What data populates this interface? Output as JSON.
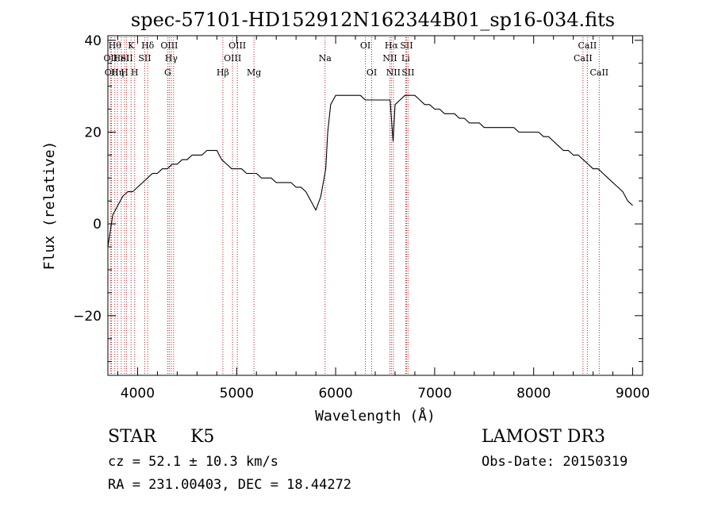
{
  "chart_data": {
    "type": "line",
    "title": "spec-57101-HD152912N162344B01_sp16-034.fits",
    "xlabel": "Wavelength (Å)",
    "ylabel": "Flux (relative)",
    "xlim": [
      3700,
      9100
    ],
    "ylim": [
      -33,
      41
    ],
    "x_ticks": [
      4000,
      5000,
      6000,
      7000,
      8000,
      9000
    ],
    "x_tick_labels": [
      "4000",
      "5000",
      "6000",
      "7000",
      "8000",
      "9000"
    ],
    "y_ticks": [
      -20,
      0,
      20,
      40
    ],
    "y_tick_labels": [
      "−20",
      "0",
      "20",
      "40"
    ],
    "grid": false,
    "line_color": "#000000",
    "marker_color": "#b22222",
    "series": [
      {
        "x": [
          3700,
          3750,
          3800,
          3850,
          3900,
          3950,
          4000,
          4050,
          4100,
          4150,
          4200,
          4250,
          4300,
          4350,
          4400,
          4450,
          4500,
          4550,
          4600,
          4650,
          4700,
          4750,
          4800,
          4850,
          4900,
          4950,
          5000,
          5050,
          5100,
          5150,
          5200,
          5250,
          5300,
          5350,
          5400,
          5450,
          5500,
          5550,
          5600,
          5650,
          5700,
          5750,
          5800,
          5850,
          5900,
          5920,
          5950,
          6000,
          6050,
          6100,
          6150,
          6200,
          6250,
          6300,
          6350,
          6400,
          6450,
          6500,
          6550,
          6580,
          6600,
          6650,
          6700,
          6750,
          6800,
          6850,
          6900,
          6950,
          7000,
          7050,
          7100,
          7150,
          7200,
          7250,
          7300,
          7350,
          7400,
          7450,
          7500,
          7550,
          7600,
          7650,
          7700,
          7750,
          7800,
          7850,
          7900,
          7950,
          8000,
          8050,
          8100,
          8150,
          8200,
          8250,
          8300,
          8350,
          8400,
          8450,
          8500,
          8550,
          8600,
          8650,
          8700,
          8750,
          8800,
          8850,
          8900,
          8950,
          9000
        ],
        "y": [
          -5,
          2,
          4,
          6,
          7,
          7,
          8,
          9,
          10,
          11,
          11,
          12,
          12,
          13,
          13,
          14,
          14,
          15,
          15,
          15,
          16,
          16,
          16,
          14,
          13,
          12,
          12,
          12,
          11,
          11,
          11,
          10,
          10,
          10,
          9,
          9,
          9,
          9,
          8,
          8,
          7,
          5,
          3,
          6,
          12,
          20,
          26,
          28,
          28,
          28,
          28,
          28,
          28,
          27,
          27,
          27,
          27,
          27,
          27,
          18,
          26,
          27,
          28,
          28,
          28,
          27,
          26,
          26,
          25,
          25,
          24,
          24,
          24,
          23,
          23,
          22,
          22,
          22,
          21,
          21,
          21,
          21,
          21,
          21,
          21,
          20,
          20,
          20,
          20,
          20,
          19,
          19,
          18,
          17,
          16,
          16,
          15,
          15,
          14,
          13,
          12,
          12,
          11,
          10,
          9,
          8,
          7,
          5,
          4
        ]
      }
    ],
    "line_markers": [
      {
        "x": 3727,
        "row": 2,
        "label": "OII"
      },
      {
        "x": 3737,
        "row": 3,
        "label": "OII"
      },
      {
        "x": 3770,
        "row": 1,
        "label": "Hθ"
      },
      {
        "x": 3797,
        "row": 3,
        "label": "Hη"
      },
      {
        "x": 3835,
        "row": 2,
        "label": "HeI"
      },
      {
        "x": 3869,
        "row": 3,
        "label": "H"
      },
      {
        "x": 3889,
        "row": 2,
        "label": "SII"
      },
      {
        "x": 3934,
        "row": 1,
        "label": "K"
      },
      {
        "x": 3970,
        "row": 3,
        "label": "H"
      },
      {
        "x": 4072,
        "row": 2,
        "label": "SII"
      },
      {
        "x": 4102,
        "row": 1,
        "label": "Hδ"
      },
      {
        "x": 4304,
        "row": 3,
        "label": "G"
      },
      {
        "x": 4320,
        "row": 1,
        "label": "OIII"
      },
      {
        "x": 4340,
        "row": 2,
        "label": "Hγ"
      },
      {
        "x": 4363,
        "row": 1,
        "label": ""
      },
      {
        "x": 4861,
        "row": 3,
        "label": "Hβ"
      },
      {
        "x": 4959,
        "row": 2,
        "label": "OIII"
      },
      {
        "x": 5007,
        "row": 1,
        "label": "OIII"
      },
      {
        "x": 5175,
        "row": 3,
        "label": "Mg"
      },
      {
        "x": 5893,
        "row": 2,
        "label": "Na"
      },
      {
        "x": 6300,
        "row": 1,
        "label": "OI"
      },
      {
        "x": 6364,
        "row": 3,
        "label": "OI"
      },
      {
        "x": 6548,
        "row": 2,
        "label": "NII"
      },
      {
        "x": 6563,
        "row": 1,
        "label": "Hα"
      },
      {
        "x": 6583,
        "row": 3,
        "label": "NII"
      },
      {
        "x": 6707,
        "row": 2,
        "label": "Li"
      },
      {
        "x": 6716,
        "row": 1,
        "label": "SII"
      },
      {
        "x": 6731,
        "row": 3,
        "label": "SII"
      },
      {
        "x": 8498,
        "row": 2,
        "label": "CaII"
      },
      {
        "x": 8542,
        "row": 1,
        "label": "CaII"
      },
      {
        "x": 8662,
        "row": 3,
        "label": "CaII"
      }
    ]
  },
  "info": {
    "class_label": "STAR",
    "subclass_label": "K5",
    "cz_label": "cz = 52.1 ± 10.3 km/s",
    "coords_label": "RA = 231.00403, DEC =  18.44272",
    "survey_label": "LAMOST DR3",
    "obs_date_label": "Obs-Date: 20150319"
  }
}
